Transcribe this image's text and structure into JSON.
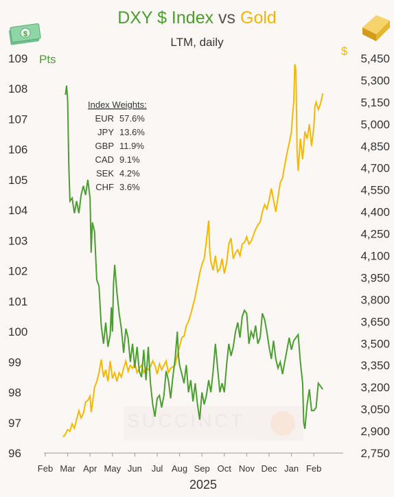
{
  "title": {
    "part1": "DXY $ Index",
    "part2": "vs",
    "part3": "Gold"
  },
  "subtitle": "LTM, daily",
  "icons": {
    "left": "dollar-bills-icon",
    "right": "gold-bar-icon"
  },
  "colors": {
    "dxy": "#4a9e2f",
    "gold": "#f5b800",
    "bg": "#fbf7f4"
  },
  "watermark": "SUCCINCT",
  "weights": {
    "heading": "Index Weights:",
    "rows": [
      {
        "ccy": "EUR",
        "pct": "57.6%"
      },
      {
        "ccy": "JPY",
        "pct": "13.6%"
      },
      {
        "ccy": "GBP",
        "pct": "11.9%"
      },
      {
        "ccy": "CAD",
        "pct": "9.1%"
      },
      {
        "ccy": "SEK",
        "pct": "4.2%"
      },
      {
        "ccy": "CHF",
        "pct": "3.6%"
      }
    ]
  },
  "chart_data": {
    "type": "line",
    "left_axis_unit": "Pts",
    "right_axis_unit": "$",
    "xlabel": "2025",
    "left_ylim": [
      96,
      109
    ],
    "right_ylim": [
      2750,
      5450
    ],
    "left_ticks": [
      109,
      108,
      107,
      106,
      105,
      104,
      103,
      102,
      101,
      100,
      99,
      98,
      97,
      96
    ],
    "right_ticks": [
      "5,450",
      "5,300",
      "5,150",
      "5,000",
      "4,850",
      "4,700",
      "4,550",
      "4,400",
      "4,250",
      "4,100",
      "3,950",
      "3,800",
      "3,650",
      "3,500",
      "3,350",
      "3,200",
      "3,050",
      "2,900",
      "2,750"
    ],
    "x_ticks": [
      "Feb",
      "Mar",
      "Apr",
      "May",
      "Jun",
      "Jul",
      "Aug",
      "Sep",
      "Oct",
      "Nov",
      "Dec",
      "Jan",
      "Feb"
    ],
    "series": [
      {
        "name": "DXY $ Index",
        "axis": "left",
        "values": [
          [
            0.9,
            107.8
          ],
          [
            0.95,
            108.1
          ],
          [
            1.0,
            107.6
          ],
          [
            1.05,
            105.5
          ],
          [
            1.1,
            104.3
          ],
          [
            1.2,
            104.4
          ],
          [
            1.3,
            103.9
          ],
          [
            1.4,
            104.3
          ],
          [
            1.5,
            103.9
          ],
          [
            1.6,
            104.5
          ],
          [
            1.7,
            104.8
          ],
          [
            1.8,
            104.5
          ],
          [
            1.9,
            105.0
          ],
          [
            2.0,
            104.4
          ],
          [
            2.05,
            102.6
          ],
          [
            2.1,
            103.6
          ],
          [
            2.2,
            103.3
          ],
          [
            2.3,
            101.7
          ],
          [
            2.4,
            101.5
          ],
          [
            2.5,
            100.2
          ],
          [
            2.6,
            99.6
          ],
          [
            2.7,
            100.3
          ],
          [
            2.8,
            99.5
          ],
          [
            2.9,
            99.9
          ],
          [
            2.95,
            100.8
          ],
          [
            3.0,
            100.0
          ],
          [
            3.05,
            101.6
          ],
          [
            3.1,
            102.2
          ],
          [
            3.2,
            101.3
          ],
          [
            3.3,
            100.6
          ],
          [
            3.4,
            100.1
          ],
          [
            3.5,
            99.3
          ],
          [
            3.6,
            100.1
          ],
          [
            3.7,
            99.8
          ],
          [
            3.8,
            99.0
          ],
          [
            3.9,
            99.6
          ],
          [
            4.0,
            98.8
          ],
          [
            4.1,
            99.5
          ],
          [
            4.2,
            98.7
          ],
          [
            4.3,
            98.5
          ],
          [
            4.4,
            99.4
          ],
          [
            4.5,
            98.4
          ],
          [
            4.6,
            99.5
          ],
          [
            4.7,
            98.3
          ],
          [
            4.8,
            97.6
          ],
          [
            4.9,
            97.2
          ],
          [
            5.0,
            97.8
          ],
          [
            5.1,
            97.9
          ],
          [
            5.2,
            97.5
          ],
          [
            5.3,
            97.9
          ],
          [
            5.4,
            98.7
          ],
          [
            5.5,
            98.4
          ],
          [
            5.6,
            97.8
          ],
          [
            5.7,
            98.5
          ],
          [
            5.8,
            99.1
          ],
          [
            5.9,
            100.0
          ],
          [
            5.95,
            99.2
          ],
          [
            6.0,
            98.9
          ],
          [
            6.1,
            98.6
          ],
          [
            6.2,
            98.3
          ],
          [
            6.3,
            98.9
          ],
          [
            6.4,
            98.0
          ],
          [
            6.5,
            98.4
          ],
          [
            6.6,
            97.7
          ],
          [
            6.7,
            98.3
          ],
          [
            6.8,
            97.6
          ],
          [
            6.9,
            97.1
          ],
          [
            7.0,
            98.0
          ],
          [
            7.1,
            97.6
          ],
          [
            7.2,
            97.9
          ],
          [
            7.3,
            98.4
          ],
          [
            7.4,
            98.0
          ],
          [
            7.5,
            98.7
          ],
          [
            7.6,
            99.6
          ],
          [
            7.7,
            98.8
          ],
          [
            7.8,
            98.0
          ],
          [
            7.9,
            98.3
          ],
          [
            8.0,
            98.0
          ],
          [
            8.1,
            98.9
          ],
          [
            8.2,
            99.6
          ],
          [
            8.3,
            99.2
          ],
          [
            8.4,
            99.5
          ],
          [
            8.5,
            100.0
          ],
          [
            8.6,
            100.3
          ],
          [
            8.7,
            99.8
          ],
          [
            8.8,
            100.5
          ],
          [
            8.9,
            100.7
          ],
          [
            9.0,
            100.6
          ],
          [
            9.1,
            99.6
          ],
          [
            9.2,
            100.0
          ],
          [
            9.3,
            99.8
          ],
          [
            9.4,
            100.2
          ],
          [
            9.5,
            99.6
          ],
          [
            9.6,
            99.8
          ],
          [
            9.7,
            100.6
          ],
          [
            9.8,
            100.4
          ],
          [
            9.9,
            100.0
          ],
          [
            10.0,
            99.5
          ],
          [
            10.1,
            99.1
          ],
          [
            10.2,
            99.7
          ],
          [
            10.3,
            99.1
          ],
          [
            10.4,
            98.8
          ],
          [
            10.5,
            99.0
          ],
          [
            10.6,
            98.6
          ],
          [
            10.7,
            99.0
          ],
          [
            10.8,
            99.4
          ],
          [
            10.9,
            99.8
          ],
          [
            11.0,
            99.4
          ],
          [
            11.1,
            99.7
          ],
          [
            11.2,
            99.8
          ],
          [
            11.3,
            99.9
          ],
          [
            11.4,
            99.0
          ],
          [
            11.5,
            98.3
          ],
          [
            11.55,
            97.0
          ],
          [
            11.6,
            96.8
          ],
          [
            11.7,
            97.6
          ],
          [
            11.8,
            98.1
          ],
          [
            11.9,
            97.4
          ],
          [
            12.0,
            97.4
          ],
          [
            12.1,
            97.5
          ],
          [
            12.2,
            98.3
          ],
          [
            12.3,
            98.2
          ],
          [
            12.4,
            98.1
          ]
        ]
      },
      {
        "name": "Gold",
        "axis": "right",
        "values": [
          [
            0.8,
            2860
          ],
          [
            0.9,
            2880
          ],
          [
            1.0,
            2910
          ],
          [
            1.1,
            2900
          ],
          [
            1.2,
            2950
          ],
          [
            1.3,
            2920
          ],
          [
            1.4,
            2980
          ],
          [
            1.5,
            3040
          ],
          [
            1.6,
            2990
          ],
          [
            1.7,
            3020
          ],
          [
            1.8,
            3100
          ],
          [
            1.9,
            3110
          ],
          [
            2.0,
            3140
          ],
          [
            2.05,
            3030
          ],
          [
            2.1,
            3080
          ],
          [
            2.2,
            3200
          ],
          [
            2.3,
            3240
          ],
          [
            2.4,
            3300
          ],
          [
            2.5,
            3390
          ],
          [
            2.6,
            3270
          ],
          [
            2.7,
            3320
          ],
          [
            2.8,
            3240
          ],
          [
            2.9,
            3380
          ],
          [
            3.0,
            3260
          ],
          [
            3.1,
            3300
          ],
          [
            3.2,
            3240
          ],
          [
            3.3,
            3300
          ],
          [
            3.4,
            3270
          ],
          [
            3.5,
            3330
          ],
          [
            3.6,
            3380
          ],
          [
            3.7,
            3310
          ],
          [
            3.8,
            3350
          ],
          [
            3.9,
            3330
          ],
          [
            4.0,
            3360
          ],
          [
            4.1,
            3300
          ],
          [
            4.2,
            3330
          ],
          [
            4.3,
            3350
          ],
          [
            4.4,
            3300
          ],
          [
            4.5,
            3330
          ],
          [
            4.6,
            3320
          ],
          [
            4.7,
            3340
          ],
          [
            4.8,
            3380
          ],
          [
            4.9,
            3350
          ],
          [
            5.0,
            3290
          ],
          [
            5.1,
            3360
          ],
          [
            5.2,
            3320
          ],
          [
            5.3,
            3350
          ],
          [
            5.4,
            3380
          ],
          [
            5.5,
            3300
          ],
          [
            5.6,
            3330
          ],
          [
            5.7,
            3340
          ],
          [
            5.8,
            3350
          ],
          [
            5.9,
            3420
          ],
          [
            6.0,
            3480
          ],
          [
            6.1,
            3540
          ],
          [
            6.2,
            3550
          ],
          [
            6.3,
            3620
          ],
          [
            6.4,
            3650
          ],
          [
            6.5,
            3700
          ],
          [
            6.6,
            3760
          ],
          [
            6.7,
            3820
          ],
          [
            6.8,
            3900
          ],
          [
            6.9,
            3980
          ],
          [
            7.0,
            4040
          ],
          [
            7.1,
            4080
          ],
          [
            7.2,
            4200
          ],
          [
            7.3,
            4340
          ],
          [
            7.35,
            4130
          ],
          [
            7.4,
            4060
          ],
          [
            7.5,
            4000
          ],
          [
            7.6,
            4100
          ],
          [
            7.7,
            3990
          ],
          [
            7.8,
            4010
          ],
          [
            7.9,
            4080
          ],
          [
            8.0,
            3980
          ],
          [
            8.1,
            4050
          ],
          [
            8.2,
            4180
          ],
          [
            8.3,
            4220
          ],
          [
            8.4,
            4080
          ],
          [
            8.5,
            4120
          ],
          [
            8.6,
            4140
          ],
          [
            8.7,
            4100
          ],
          [
            8.8,
            4180
          ],
          [
            8.9,
            4190
          ],
          [
            9.0,
            4230
          ],
          [
            9.1,
            4180
          ],
          [
            9.2,
            4200
          ],
          [
            9.3,
            4240
          ],
          [
            9.4,
            4280
          ],
          [
            9.5,
            4310
          ],
          [
            9.6,
            4330
          ],
          [
            9.7,
            4400
          ],
          [
            9.8,
            4450
          ],
          [
            9.9,
            4420
          ],
          [
            10.0,
            4480
          ],
          [
            10.1,
            4560
          ],
          [
            10.2,
            4480
          ],
          [
            10.3,
            4400
          ],
          [
            10.4,
            4500
          ],
          [
            10.5,
            4600
          ],
          [
            10.6,
            4630
          ],
          [
            10.7,
            4720
          ],
          [
            10.8,
            4800
          ],
          [
            10.9,
            4870
          ],
          [
            11.0,
            4950
          ],
          [
            11.05,
            5060
          ],
          [
            11.1,
            5150
          ],
          [
            11.15,
            5410
          ],
          [
            11.2,
            5370
          ],
          [
            11.25,
            4820
          ],
          [
            11.3,
            4680
          ],
          [
            11.4,
            4900
          ],
          [
            11.5,
            4760
          ],
          [
            11.6,
            4950
          ],
          [
            11.7,
            4900
          ],
          [
            11.8,
            5000
          ],
          [
            11.9,
            4850
          ],
          [
            12.0,
            4980
          ],
          [
            12.05,
            5120
          ],
          [
            12.1,
            5150
          ],
          [
            12.2,
            5100
          ],
          [
            12.3,
            5140
          ],
          [
            12.4,
            5210
          ]
        ]
      }
    ]
  }
}
